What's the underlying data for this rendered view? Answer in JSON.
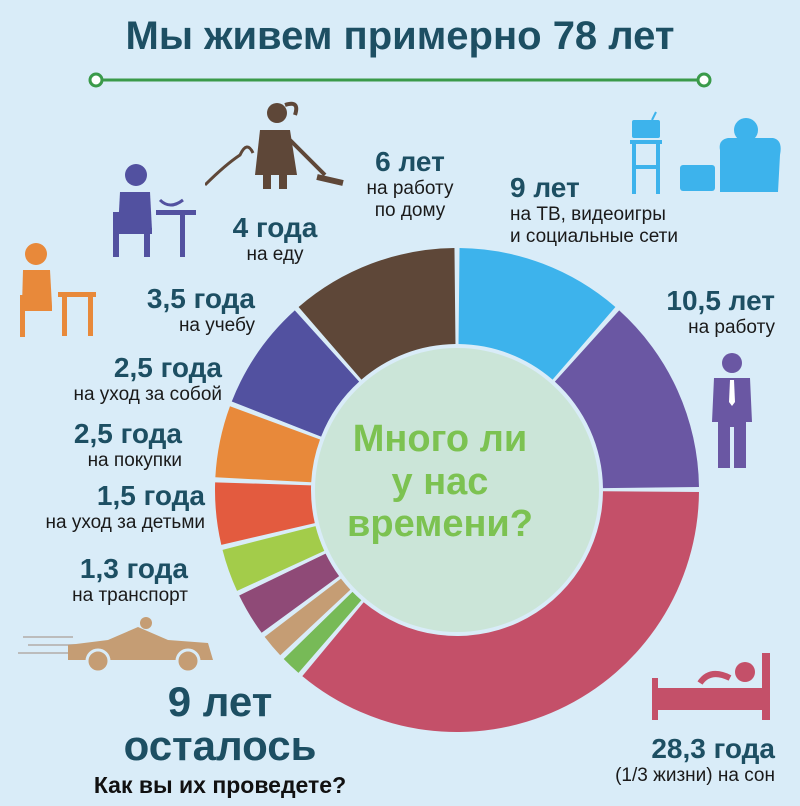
{
  "title_prefix": "Мы живем примерно ",
  "title_bold": "78 лет",
  "center_question": [
    "Много ли",
    "у нас",
    "времени?"
  ],
  "remaining": {
    "value": "9 лет",
    "word": "осталось",
    "question": "Как вы их проведете?"
  },
  "chart_data": {
    "type": "pie",
    "title": "Мы живем примерно 78 лет",
    "slices": [
      {
        "value_label": "9 лет",
        "desc": "на ТВ, видеоигры и социальные сети",
        "value": 9,
        "color": "#3db3ec"
      },
      {
        "value_label": "10,5 лет",
        "desc": "на работу",
        "value": 10.5,
        "color": "#6a57a3"
      },
      {
        "value_label": "28,3 года",
        "desc": "(1/3 жизни) на сон",
        "value": 28.3,
        "color": "#c45069"
      },
      {
        "value_label": "1,3 года",
        "desc": "на транспорт",
        "value": 1.3,
        "color": "#77ba57"
      },
      {
        "value_label": "1,5 года",
        "desc": "на уход за детьми",
        "value": 1.5,
        "color": "#c59d74"
      },
      {
        "value_label": "2,5 года",
        "desc": "на покупки",
        "value": 2.5,
        "color": "#8f4a77"
      },
      {
        "value_label": "2,5 года",
        "desc": "на уход за собой",
        "value": 2.5,
        "color": "#a3cc4a"
      },
      {
        "value_label": "3,5 года",
        "desc": "на учебу",
        "value": 3.5,
        "color": "#e35b3f"
      },
      {
        "value_label": "4 года",
        "desc": "на еду",
        "value": 4,
        "color": "#e8893a"
      },
      {
        "value_label": "6 лет",
        "desc": "на работу по дому",
        "value": 6,
        "color": "#5251a0"
      },
      {
        "value_label": "9 лет",
        "desc": "осталось",
        "value": 9,
        "color": "#5e4738"
      }
    ]
  },
  "labels": {
    "tv": {
      "v": "9 лет",
      "d1": "на ТВ, видеоигры",
      "d2": "и социальные сети"
    },
    "work": {
      "v": "10,5 лет",
      "d1": "на работу"
    },
    "sleep": {
      "v": "28,3 года",
      "d1": "(1/3 жизни) на сон"
    },
    "transport": {
      "v": "1,3 года",
      "d1": "на транспорт"
    },
    "kids": {
      "v": "1,5 года",
      "d1": "на уход за детьми"
    },
    "shopping": {
      "v": "2,5 года",
      "d1": "на покупки"
    },
    "selfcare": {
      "v": "2,5 года",
      "d1": "на уход за собой"
    },
    "study": {
      "v": "3,5 года",
      "d1": "на учебу"
    },
    "food": {
      "v": "4 года",
      "d1": "на еду"
    },
    "house": {
      "v": "6 лет",
      "d1": "на работу",
      "d2": "по дому"
    }
  }
}
